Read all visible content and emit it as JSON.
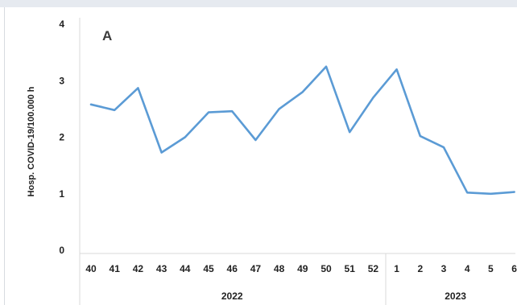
{
  "chart_data": {
    "type": "line",
    "panel_label": "A",
    "ylabel": "Hosp. COVID-19/100.000 h",
    "ylim": [
      0,
      4
    ],
    "yticks": [
      "0",
      "1",
      "2",
      "3",
      "4"
    ],
    "categories": [
      "40",
      "41",
      "42",
      "43",
      "44",
      "45",
      "46",
      "47",
      "48",
      "49",
      "50",
      "51",
      "52",
      "1",
      "2",
      "3",
      "4",
      "5",
      "6"
    ],
    "year_groups": [
      {
        "label": "2022",
        "from": "40",
        "to": "52"
      },
      {
        "label": "2023",
        "from": "1",
        "to": "6"
      }
    ],
    "series": [
      {
        "color": "#5b9bd5",
        "values": [
          2.58,
          2.48,
          2.87,
          1.73,
          2.0,
          2.44,
          2.46,
          1.95,
          2.5,
          2.8,
          3.25,
          2.09,
          2.7,
          3.2,
          2.02,
          1.82,
          1.02,
          1.0,
          1.03
        ]
      }
    ],
    "grid": false,
    "legend": "none"
  }
}
